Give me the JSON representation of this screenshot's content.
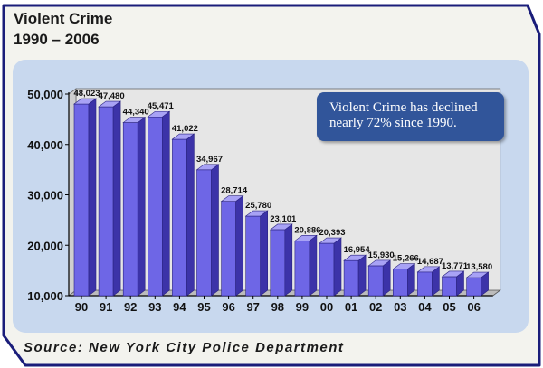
{
  "title_line1": "Violent Crime",
  "title_line2": "1990 – 2006",
  "callout": {
    "line1": "Violent Crime has declined",
    "line2": "nearly 72% since 1990."
  },
  "source": "Source: New York City Police Department",
  "colors": {
    "bar_front": "#6e66e6",
    "bar_side": "#3c33a8",
    "bar_top": "#a8a2f5",
    "panel": "#c8d8ee",
    "frame": "#1a1d7a",
    "callout": "#31559a"
  },
  "chart_data": {
    "type": "bar",
    "categories": [
      "90",
      "91",
      "92",
      "93",
      "94",
      "95",
      "96",
      "97",
      "98",
      "99",
      "00",
      "01",
      "02",
      "03",
      "04",
      "05",
      "06"
    ],
    "values": [
      48023,
      47480,
      44340,
      45471,
      41022,
      34967,
      28714,
      25780,
      23101,
      20886,
      20393,
      16954,
      15930,
      15266,
      14687,
      13771,
      13580
    ],
    "data_labels": [
      "48,023",
      "47,480",
      "44,340",
      "45,471",
      "41,022",
      "34,967",
      "28,714",
      "25,780",
      "23,101",
      "20,886",
      "20,393",
      "16,954",
      "15,930",
      "15,266",
      "14,687",
      "13,771",
      "13,580"
    ],
    "yticks": [
      10000,
      20000,
      30000,
      40000,
      50000
    ],
    "ytick_labels": [
      "10,000",
      "20,000",
      "30,000",
      "40,000",
      "50,000"
    ],
    "ylim": [
      10000,
      50000
    ],
    "grid": false,
    "style": "3d"
  }
}
